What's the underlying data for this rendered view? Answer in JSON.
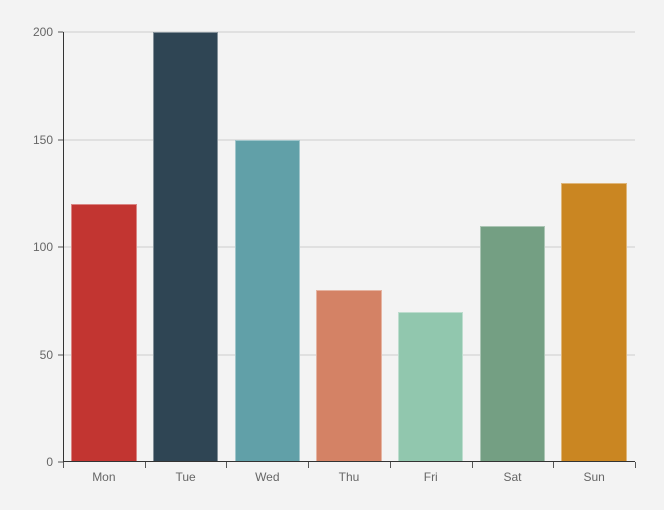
{
  "chart_data": {
    "type": "bar",
    "categories": [
      "Mon",
      "Tue",
      "Wed",
      "Thu",
      "Fri",
      "Sat",
      "Sun"
    ],
    "values": [
      120,
      200,
      150,
      80,
      70,
      110,
      130
    ],
    "bar_colors": [
      "#c23531",
      "#2f4554",
      "#61a0a8",
      "#d48265",
      "#91c7ae",
      "#749f83",
      "#ca8622"
    ],
    "y_ticks": [
      0,
      50,
      100,
      150,
      200
    ],
    "ylim": [
      0,
      200
    ],
    "grid": true,
    "legend_visible": false,
    "colors": {
      "background": "#f3f3f3",
      "gridline": "#cccccc",
      "axis_line": "#333333",
      "tick_mark": "#555555",
      "tick_label": "#666666",
      "bar_border": "rgba(255,255,255,0.4)"
    }
  }
}
